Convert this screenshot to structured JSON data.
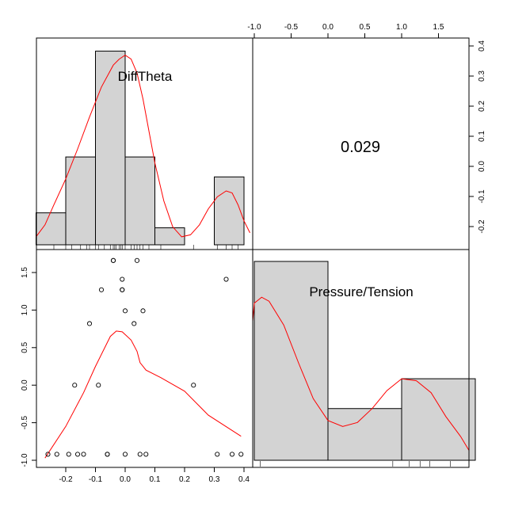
{
  "chart_data": {
    "type": "scatter",
    "subtype": "pairs-matrix",
    "variables": [
      {
        "name": "DiffTheta",
        "histogram": {
          "breaks": [
            -0.3,
            -0.2,
            -0.1,
            0.0,
            0.1,
            0.2,
            0.3,
            0.4
          ],
          "relative_heights": [
            0.16,
            0.44,
            0.97,
            0.44,
            0.085,
            0.0,
            0.34
          ]
        },
        "density": [
          [
            -0.3,
            0.04
          ],
          [
            -0.27,
            0.1
          ],
          [
            -0.24,
            0.2
          ],
          [
            -0.2,
            0.33
          ],
          [
            -0.16,
            0.48
          ],
          [
            -0.12,
            0.64
          ],
          [
            -0.08,
            0.79
          ],
          [
            -0.04,
            0.9
          ],
          [
            -0.02,
            0.93
          ],
          [
            0.0,
            0.95
          ],
          [
            0.02,
            0.93
          ],
          [
            0.04,
            0.86
          ],
          [
            0.06,
            0.73
          ],
          [
            0.08,
            0.57
          ],
          [
            0.1,
            0.41
          ],
          [
            0.13,
            0.22
          ],
          [
            0.16,
            0.09
          ],
          [
            0.19,
            0.04
          ],
          [
            0.22,
            0.05
          ],
          [
            0.25,
            0.1
          ],
          [
            0.28,
            0.18
          ],
          [
            0.31,
            0.24
          ],
          [
            0.34,
            0.27
          ],
          [
            0.36,
            0.26
          ],
          [
            0.38,
            0.2
          ],
          [
            0.4,
            0.12
          ],
          [
            0.42,
            0.06
          ]
        ],
        "rug": [
          -0.24,
          -0.2,
          -0.18,
          -0.15,
          -0.13,
          -0.12,
          -0.1,
          -0.09,
          -0.07,
          -0.05,
          -0.04,
          -0.035,
          -0.03,
          -0.02,
          -0.015,
          -0.01,
          0.0,
          0.02,
          0.03,
          0.04,
          0.05,
          0.06,
          0.08,
          0.12,
          0.23,
          0.31,
          0.34,
          0.36,
          0.38
        ]
      },
      {
        "name": "Pressure/Tension",
        "histogram": {
          "breaks": [
            -1.0,
            0.0,
            1.0,
            2.0
          ],
          "relative_heights": [
            1.0,
            0.26,
            0.41
          ]
        },
        "density": [
          [
            -1.2,
            0.56
          ],
          [
            -1.1,
            0.7
          ],
          [
            -1.0,
            0.79
          ],
          [
            -0.9,
            0.82
          ],
          [
            -0.8,
            0.8
          ],
          [
            -0.6,
            0.68
          ],
          [
            -0.4,
            0.49
          ],
          [
            -0.2,
            0.31
          ],
          [
            0.0,
            0.2
          ],
          [
            0.2,
            0.17
          ],
          [
            0.4,
            0.19
          ],
          [
            0.6,
            0.26
          ],
          [
            0.8,
            0.35
          ],
          [
            1.0,
            0.41
          ],
          [
            1.2,
            0.4
          ],
          [
            1.4,
            0.34
          ],
          [
            1.6,
            0.22
          ],
          [
            1.8,
            0.12
          ],
          [
            2.0,
            0.05
          ],
          [
            2.2,
            0.01
          ]
        ],
        "rug": [
          -0.92,
          0.88,
          1.1,
          1.25,
          1.38,
          1.66
        ]
      }
    ],
    "scatter_lower": {
      "x_variable": "DiffTheta",
      "y_variable": "Pressure/Tension",
      "points": [
        [
          -0.26,
          -0.92
        ],
        [
          -0.23,
          -0.92
        ],
        [
          -0.19,
          -0.92
        ],
        [
          -0.16,
          -0.92
        ],
        [
          -0.14,
          -0.92
        ],
        [
          -0.06,
          -0.92
        ],
        [
          -0.06,
          -0.92
        ],
        [
          0.0,
          -0.92
        ],
        [
          0.05,
          -0.92
        ],
        [
          0.07,
          -0.92
        ],
        [
          0.31,
          -0.92
        ],
        [
          0.36,
          -0.92
        ],
        [
          0.39,
          -0.92
        ],
        [
          -0.17,
          0.0
        ],
        [
          -0.09,
          0.0
        ],
        [
          0.23,
          0.0
        ],
        [
          -0.12,
          0.82
        ],
        [
          0.03,
          0.82
        ],
        [
          0.0,
          0.99
        ],
        [
          0.06,
          0.99
        ],
        [
          -0.08,
          1.27
        ],
        [
          -0.01,
          1.27
        ],
        [
          -0.01,
          1.27
        ],
        [
          -0.01,
          1.41
        ],
        [
          0.34,
          1.41
        ],
        [
          -0.04,
          1.66
        ],
        [
          -0.04,
          1.66
        ],
        [
          0.04,
          1.66
        ]
      ],
      "smooth_line": [
        [
          -0.27,
          -0.97
        ],
        [
          -0.2,
          -0.55
        ],
        [
          -0.14,
          -0.1
        ],
        [
          -0.1,
          0.25
        ],
        [
          -0.05,
          0.65
        ],
        [
          -0.03,
          0.72
        ],
        [
          -0.01,
          0.71
        ],
        [
          0.02,
          0.6
        ],
        [
          0.04,
          0.45
        ],
        [
          0.05,
          0.3
        ],
        [
          0.07,
          0.2
        ],
        [
          0.12,
          0.1
        ],
        [
          0.2,
          -0.08
        ],
        [
          0.28,
          -0.4
        ],
        [
          0.39,
          -0.68
        ]
      ],
      "x_ticks": [
        "-0.2",
        "-0.1",
        "0.0",
        "0.1",
        "0.2",
        "0.3",
        "0.4"
      ],
      "y_ticks": [
        "-1.0",
        "-0.5",
        "0.0",
        "0.5",
        "1.0",
        "1.5"
      ],
      "xlim": [
        -0.29,
        0.42
      ],
      "ylim": [
        -0.98,
        1.72
      ]
    },
    "correlation_upper": "0.029",
    "top_axis_ticks": [
      "-1.0",
      "-0.5",
      "0.0",
      "0.5",
      "1.0",
      "1.5"
    ],
    "right_axis_ticks": [
      "-0.2",
      "-0.1",
      "0.0",
      "0.1",
      "0.2",
      "0.3",
      "0.4"
    ],
    "colors": {
      "bar_fill": "#d3d3d3",
      "line": "#ff0000",
      "axis": "#000000"
    }
  }
}
